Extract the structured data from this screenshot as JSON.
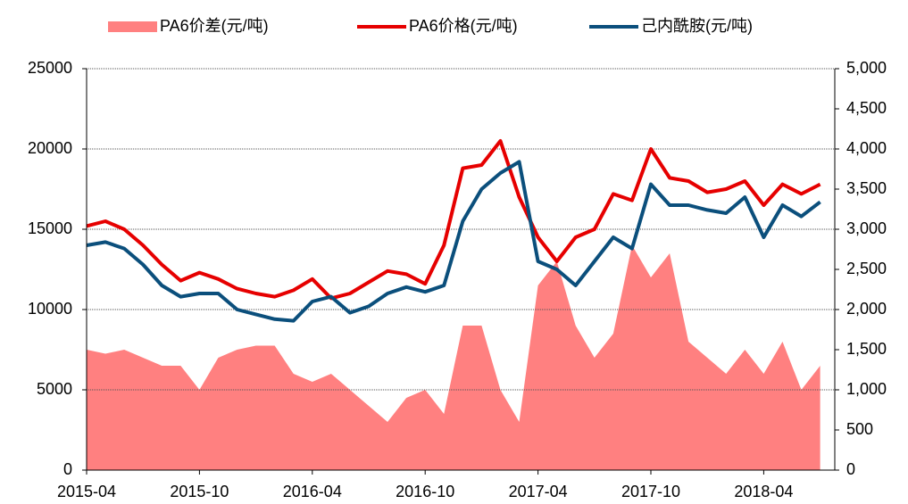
{
  "chart_data": {
    "type": "line",
    "categories": [
      "2015-04",
      null,
      null,
      null,
      null,
      null,
      "2015-10",
      null,
      null,
      null,
      null,
      null,
      "2016-04",
      null,
      null,
      null,
      null,
      null,
      "2016-10",
      null,
      null,
      null,
      null,
      null,
      "2017-04",
      null,
      null,
      null,
      null,
      null,
      "2017-10",
      null,
      null,
      null,
      null,
      null,
      "2018-04",
      null,
      null,
      null
    ],
    "series": [
      {
        "name": "PA6价差(元/吨)",
        "type": "area",
        "axis": "y2",
        "color": "#ff8080",
        "values": [
          1500,
          1450,
          1500,
          1400,
          1300,
          1300,
          1000,
          1400,
          1500,
          1550,
          1550,
          1200,
          1100,
          1200,
          1000,
          800,
          600,
          900,
          1000,
          700,
          1800,
          1800,
          1000,
          600,
          2300,
          2600,
          1800,
          1400,
          1700,
          2800,
          2400,
          2700,
          1600,
          1400,
          1200,
          1500,
          1200,
          1600,
          1000,
          1300
        ]
      },
      {
        "name": "PA6价格(元/吨)",
        "type": "line",
        "axis": "y",
        "color": "#e60000",
        "values": [
          15200,
          15500,
          15000,
          14000,
          12800,
          11800,
          12300,
          11900,
          11300,
          11000,
          10800,
          11200,
          11900,
          10700,
          11000,
          11700,
          12400,
          12200,
          11600,
          14000,
          18800,
          19000,
          20500,
          17000,
          14500,
          13000,
          14500,
          15000,
          17200,
          16800,
          20000,
          18200,
          18000,
          17300,
          17500,
          18000,
          16500,
          17800,
          17200,
          17800
        ]
      },
      {
        "name": "己内酰胺(元/吨)",
        "type": "line",
        "axis": "y",
        "color": "#0b4f7c",
        "values": [
          14000,
          14200,
          13800,
          12800,
          11500,
          10800,
          11000,
          11000,
          10000,
          9700,
          9400,
          9300,
          10500,
          10800,
          9800,
          10200,
          11000,
          11400,
          11100,
          11500,
          15500,
          17500,
          18500,
          19200,
          13000,
          12500,
          11500,
          13000,
          14500,
          13800,
          17800,
          16500,
          16500,
          16200,
          16000,
          17000,
          14500,
          16500,
          15800,
          16700
        ]
      }
    ],
    "ylim": [
      0,
      25000
    ],
    "yticks": [
      0,
      5000,
      10000,
      15000,
      20000,
      25000
    ],
    "y2lim": [
      0,
      5000
    ],
    "y2ticks": [
      0,
      500,
      {
        "value": 1000,
        "label": "1,000"
      },
      {
        "value": 1500,
        "label": "1,500"
      },
      {
        "value": 2000,
        "label": "2,000"
      },
      {
        "value": 2500,
        "label": "2,500"
      },
      {
        "value": 3000,
        "label": "3,000"
      },
      {
        "value": 3500,
        "label": "3,500"
      },
      {
        "value": 4000,
        "label": "4,000"
      },
      {
        "value": 4500,
        "label": "4,500"
      },
      {
        "value": 5000,
        "label": "5,000"
      }
    ],
    "grid": true,
    "legend": "top"
  }
}
